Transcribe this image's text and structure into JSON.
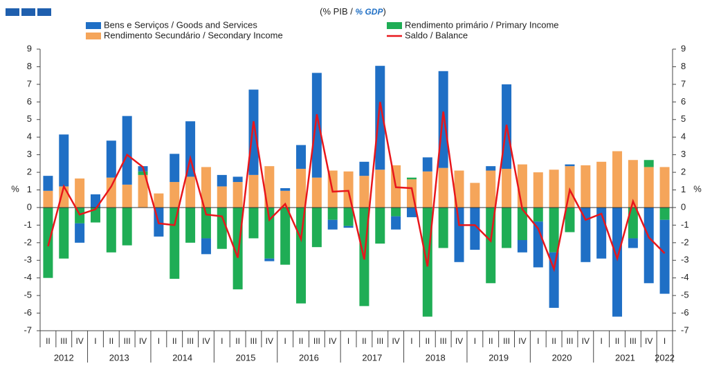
{
  "chart_data": {
    "type": "bar",
    "subtitle": [
      "(% PIB / ",
      "% GDP",
      ")"
    ],
    "ylabel": "%",
    "y2label": "%",
    "categories": [
      "II",
      "III",
      "IV",
      "I",
      "II",
      "III",
      "IV",
      "I",
      "II",
      "III",
      "IV",
      "I",
      "II",
      "III",
      "IV",
      "I",
      "II",
      "III",
      "IV",
      "I",
      "II",
      "III",
      "IV",
      "I",
      "II",
      "III",
      "IV",
      "I",
      "II",
      "III",
      "IV",
      "I",
      "II",
      "III",
      "IV",
      "I",
      "II",
      "III",
      "IV",
      "I"
    ],
    "years": [
      "2012",
      "2013",
      "2014",
      "2015",
      "2016",
      "2017",
      "2018",
      "2019",
      "2020",
      "2021",
      "2022"
    ],
    "series": [
      {
        "name": "Bens e Serviços / Goods and Services",
        "color": "#1f6fc5",
        "values": [
          0.85,
          2.95,
          -1.1,
          0.75,
          2.1,
          3.9,
          0.3,
          -1.65,
          1.6,
          3.15,
          -0.9,
          0.65,
          0.3,
          4.85,
          -0.15,
          0.15,
          1.35,
          5.95,
          -0.55,
          -0.1,
          0.8,
          5.9,
          -0.75,
          -0.55,
          0.8,
          5.5,
          -3.1,
          -2.4,
          0.25,
          4.8,
          -0.7,
          -2.6,
          -3.15,
          0.1,
          -3.1,
          -2.9,
          -6.2,
          -0.55,
          -4.3,
          -4.2
        ]
      },
      {
        "name": "Rendimento primário / Primary Income",
        "color": "#1fad55",
        "values": [
          -4.0,
          -2.9,
          -0.9,
          -0.85,
          -2.55,
          -2.15,
          0.2,
          0,
          -4.05,
          -2.0,
          -1.75,
          -2.35,
          -4.65,
          -1.75,
          -2.9,
          -3.25,
          -5.45,
          -2.25,
          -0.7,
          -1.05,
          -5.6,
          -2.05,
          -0.5,
          0.1,
          -6.2,
          -2.3,
          0,
          0,
          -4.3,
          -2.3,
          -1.85,
          -0.8,
          -2.55,
          -1.4,
          0,
          0,
          0,
          -1.75,
          0.4,
          -0.7
        ]
      },
      {
        "name": "Rendimento Secundário / Secondary Income",
        "color": "#f5a55a",
        "values": [
          0.95,
          1.2,
          1.65,
          0,
          1.7,
          1.3,
          1.85,
          0.8,
          1.45,
          1.75,
          2.3,
          1.2,
          1.45,
          1.85,
          2.35,
          0.95,
          2.2,
          1.7,
          2.1,
          2.05,
          1.8,
          2.15,
          2.4,
          1.6,
          2.05,
          2.25,
          2.1,
          1.4,
          2.1,
          2.2,
          2.45,
          2.0,
          2.15,
          2.35,
          2.4,
          2.6,
          3.2,
          2.7,
          2.3,
          2.3
        ]
      },
      {
        "name": "Saldo / Balance",
        "color": "#e8161b",
        "type": "line",
        "values": [
          -2.2,
          1.2,
          -0.4,
          -0.1,
          1.2,
          3.0,
          2.3,
          -0.9,
          -1.0,
          2.8,
          -0.4,
          -0.5,
          -2.85,
          4.9,
          -0.7,
          0.2,
          -1.8,
          5.3,
          0.9,
          0.95,
          -2.95,
          6.0,
          1.15,
          1.1,
          -3.35,
          5.45,
          -1.0,
          -1.0,
          -1.9,
          4.7,
          -0.1,
          -1.2,
          -3.5,
          1.0,
          -0.7,
          -0.35,
          -2.9,
          0.35,
          -1.7,
          -2.6
        ]
      }
    ],
    "ylim": [
      -7,
      9
    ],
    "yticks": [
      -7,
      -6,
      -5,
      -4,
      -3,
      -2,
      -1,
      0,
      1,
      2,
      3,
      4,
      5,
      6,
      7,
      8,
      9
    ],
    "y2lim": [
      -7,
      9
    ],
    "y2ticks": [
      -7,
      -6,
      -5,
      -4,
      -3,
      -2,
      -1,
      0,
      1,
      2,
      3,
      4,
      5,
      6,
      7,
      8,
      9
    ]
  }
}
